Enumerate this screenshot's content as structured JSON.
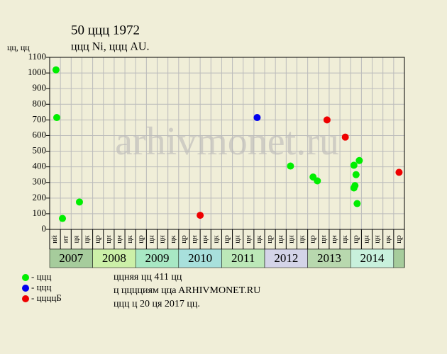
{
  "chart_data": {
    "type": "scatter",
    "title": "50 ццц 1972",
    "subtitle": "ццц Ni, ццц AU.",
    "ylabel": "цц, цц",
    "watermark": "arhivmonet.ru",
    "ylim": [
      0,
      1100
    ],
    "yticks": [
      0,
      100,
      200,
      300,
      400,
      500,
      600,
      700,
      800,
      900,
      1000,
      1100
    ],
    "xlim": [
      0,
      33
    ],
    "grid": true,
    "columns": [
      "ий",
      "ит",
      "ця",
      "цк",
      "цр",
      "цн",
      "цн",
      "цк",
      "цр",
      "цн",
      "цн",
      "цк",
      "цр",
      "цн",
      "цн",
      "цк",
      "цр",
      "цн",
      "цн",
      "цк",
      "цр",
      "цн",
      "цн",
      "цк",
      "цр",
      "цн",
      "цн",
      "цк",
      "цр",
      "цн",
      "цн",
      "цк",
      "цр"
    ],
    "years": [
      {
        "name": "2007",
        "color": "#a6cc9c"
      },
      {
        "name": "2008",
        "color": "#ccf0a8"
      },
      {
        "name": "2009",
        "color": "#a8e8c4"
      },
      {
        "name": "2010",
        "color": "#a8e0dc"
      },
      {
        "name": "2011",
        "color": "#bce8b8"
      },
      {
        "name": "2012",
        "color": "#d4d4e8"
      },
      {
        "name": "2013",
        "color": "#b8d8ae"
      },
      {
        "name": "2014",
        "color": "#c8f0dc"
      }
    ],
    "series": [
      {
        "name": "- ццц",
        "color": "#00ee00",
        "x": [
          0.59,
          0.66,
          1.19,
          2.77,
          22.4,
          24.5,
          24.9,
          28.3,
          28.5,
          28.8,
          28.3,
          28.4,
          28.6
        ],
        "values": [
          1020,
          715,
          70,
          175,
          405,
          335,
          310,
          410,
          350,
          440,
          265,
          280,
          165
        ]
      },
      {
        "name": "- ццц",
        "color": "#0000ee",
        "x": [
          19.3
        ],
        "values": [
          715
        ]
      },
      {
        "name": "- ццццБ",
        "color": "#ee0000",
        "x": [
          14.0,
          25.8,
          27.5,
          32.5
        ],
        "values": [
          90,
          700,
          590,
          365
        ]
      }
    ],
    "notes": [
      "ццняя цц 411 цц",
      "ц цццциям ццa ARHIVMONET.RU",
      "ццц ц 20 ця 2017 цц."
    ]
  }
}
